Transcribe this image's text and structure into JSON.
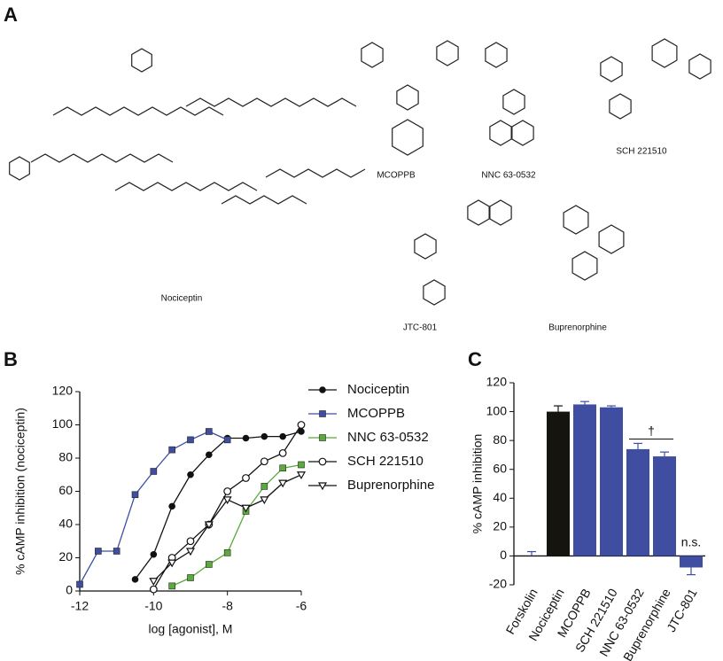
{
  "panel_labels": [
    "A",
    "B",
    "C"
  ],
  "structures": [
    {
      "name": "Nociceptin"
    },
    {
      "name": "MCOPPB"
    },
    {
      "name": "NNC 63-0532"
    },
    {
      "name": "SCH 221510"
    },
    {
      "name": "JTC-801"
    },
    {
      "name": "Buprenorphine"
    }
  ],
  "chart_data": [
    {
      "type": "scatter",
      "xlabel": "log [agonist], M",
      "ylabel": "% cAMP inhibition (nociceptin)",
      "xlim": [
        -12,
        -6
      ],
      "xticks": [
        -12,
        -10,
        -8,
        -6
      ],
      "ylim": [
        0,
        120
      ],
      "yticks": [
        0,
        20,
        40,
        60,
        80,
        100,
        120
      ],
      "legend": "right",
      "series": [
        {
          "name": "Nociceptin",
          "color": "#111111",
          "marker": "filled-circle",
          "x": [
            -10.5,
            -10,
            -9.5,
            -9,
            -8.5,
            -8,
            -7.5,
            -7,
            -6.5,
            -6
          ],
          "values": [
            7,
            22,
            51,
            70,
            82,
            92,
            92,
            93,
            93,
            96
          ]
        },
        {
          "name": "MCOPPB",
          "color": "#3f4ea0",
          "marker": "filled-square",
          "x": [
            -12,
            -11.5,
            -11,
            -10.5,
            -10,
            -9.5,
            -9,
            -8.5,
            -8
          ],
          "values": [
            4,
            24,
            24,
            58,
            72,
            85,
            91,
            96,
            91
          ]
        },
        {
          "name": "NNC 63-0532",
          "color": "#5aaa3c",
          "marker": "filled-square",
          "x": [
            -9.5,
            -9,
            -8.5,
            -8,
            -7.5,
            -7,
            -6.5,
            -6
          ],
          "values": [
            3,
            8,
            16,
            23,
            48,
            63,
            74,
            76
          ]
        },
        {
          "name": "SCH 221510",
          "color": "#111111",
          "marker": "open-circle",
          "x": [
            -10,
            -9.5,
            -9,
            -8.5,
            -8,
            -7.5,
            -7,
            -6.5,
            -6
          ],
          "values": [
            1,
            20,
            30,
            40,
            60,
            68,
            78,
            83,
            100
          ]
        },
        {
          "name": "Buprenorphine",
          "color": "#111111",
          "marker": "open-triangle",
          "x": [
            -10,
            -9.5,
            -9,
            -8.5,
            -8,
            -7.5,
            -7,
            -6.5,
            -6
          ],
          "values": [
            6,
            17,
            24,
            40,
            55,
            50,
            55,
            65,
            70
          ]
        }
      ]
    },
    {
      "type": "bar",
      "ylabel": "% cAMP inhibition",
      "categories": [
        "Forskolin",
        "Nociceptin",
        "MCOPPB",
        "SCH 221510",
        "NNC 63-0532",
        "Buprenorphine",
        "JTC-801"
      ],
      "values": [
        0,
        100,
        105,
        103,
        74,
        69,
        -8
      ],
      "errors": [
        3,
        4,
        2,
        1,
        4,
        3,
        5
      ],
      "colors": [
        "#3f4ea0",
        "#15140f",
        "#3f4ea0",
        "#3f4ea0",
        "#3f4ea0",
        "#3f4ea0",
        "#3f4ea0"
      ],
      "ylim": [
        -20,
        120
      ],
      "yticks": [
        -20,
        0,
        20,
        40,
        60,
        80,
        100,
        120
      ],
      "annotations": [
        "†",
        "n.s."
      ]
    }
  ]
}
